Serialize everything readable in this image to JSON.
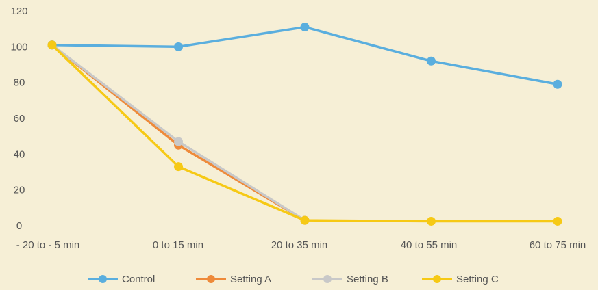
{
  "chart_data": {
    "type": "line",
    "title": "",
    "xlabel": "",
    "ylabel": "",
    "categories": [
      "- 20 to - 5 min",
      "0 to 15 min",
      "20 to 35 min",
      "40 to 55 min",
      "60 to 75 min"
    ],
    "ylim": [
      0,
      120
    ],
    "yticks": [
      0,
      20,
      40,
      60,
      80,
      100,
      120
    ],
    "grid": false,
    "legend_position": "bottom",
    "series": [
      {
        "name": "Control",
        "color": "#5aaede",
        "values": [
          101,
          100,
          111,
          92,
          79
        ]
      },
      {
        "name": "Setting A",
        "color": "#ee8a3a",
        "values": [
          101,
          45,
          3,
          null,
          null
        ]
      },
      {
        "name": "Setting B",
        "color": "#c8c8c8",
        "values": [
          101,
          47,
          3,
          null,
          null
        ]
      },
      {
        "name": "Setting C",
        "color": "#f6c915",
        "values": [
          101,
          33,
          3,
          2.5,
          2.5
        ]
      }
    ]
  }
}
